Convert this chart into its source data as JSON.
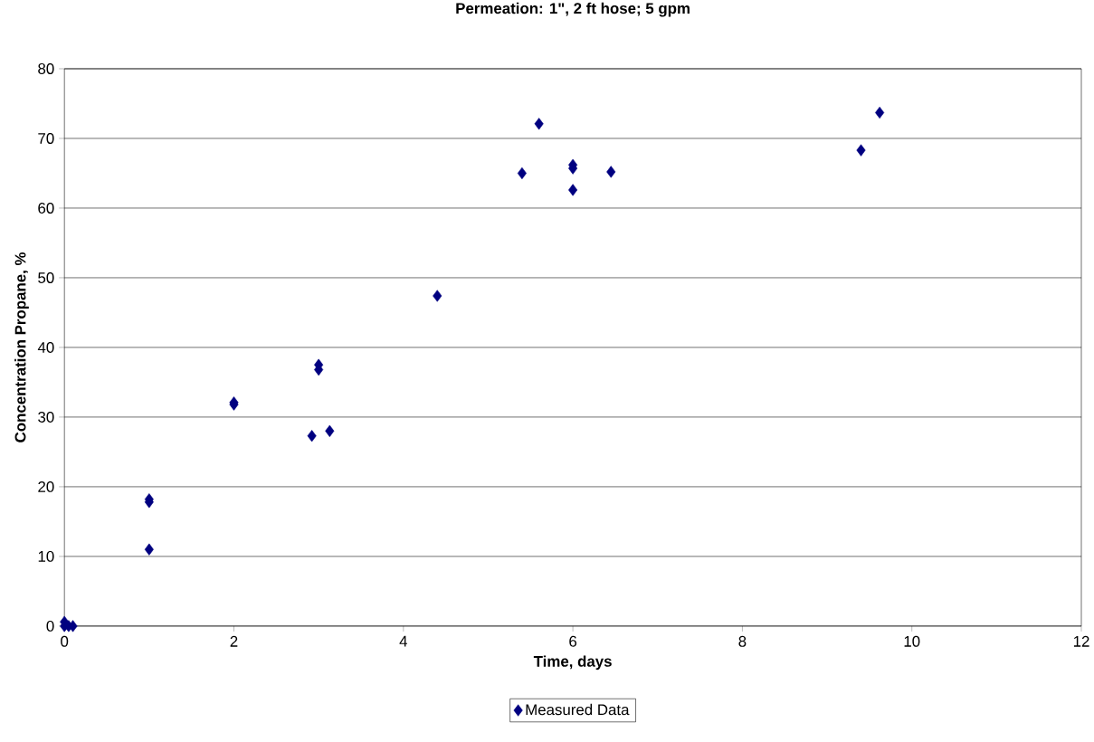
{
  "chart_data": {
    "type": "scatter",
    "title": "Permeation: 1\", 2 ft hose; 5 gpm",
    "xlabel": "Time, days",
    "ylabel": "Concentration Propane, %",
    "series": [
      {
        "name": "Measured Data",
        "color": "#000080",
        "x": [
          0,
          0,
          0.05,
          0.1,
          1,
          1,
          1,
          2,
          2,
          2.92,
          3,
          3,
          3.13,
          4.4,
          5.4,
          5.6,
          6,
          6,
          6,
          6.45,
          9.4,
          9.62
        ],
        "values": [
          0.6,
          0,
          0,
          0,
          18.2,
          17.8,
          11,
          32.1,
          31.8,
          27.3,
          37.5,
          36.8,
          28,
          47.4,
          65,
          72.1,
          66.2,
          65.7,
          62.6,
          65.2,
          68.3,
          73.7
        ]
      }
    ],
    "xlim": [
      0,
      12
    ],
    "xticks": [
      0,
      2,
      4,
      6,
      8,
      10,
      12
    ],
    "ylim": [
      0,
      80
    ],
    "yticks": [
      0,
      10,
      20,
      30,
      40,
      50,
      60,
      70,
      80
    ],
    "grid": "y",
    "legend": "bottom",
    "marker": "diamond"
  }
}
